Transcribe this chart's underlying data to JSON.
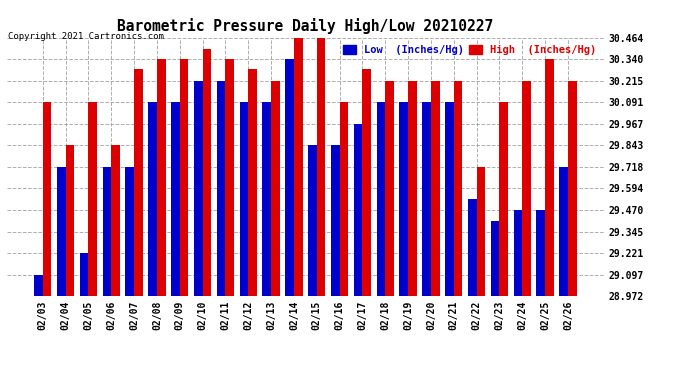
{
  "title": "Barometric Pressure Daily High/Low 20210227",
  "copyright": "Copyright 2021 Cartronics.com",
  "legend_low": "Low  (Inches/Hg)",
  "legend_high": "High  (Inches/Hg)",
  "dates": [
    "02/03",
    "02/04",
    "02/05",
    "02/06",
    "02/07",
    "02/08",
    "02/09",
    "02/10",
    "02/11",
    "02/12",
    "02/13",
    "02/14",
    "02/15",
    "02/16",
    "02/17",
    "02/18",
    "02/19",
    "02/20",
    "02/21",
    "02/22",
    "02/23",
    "02/24",
    "02/25",
    "02/26"
  ],
  "low_values": [
    29.097,
    29.718,
    29.221,
    29.718,
    29.718,
    30.091,
    30.091,
    30.215,
    30.215,
    30.091,
    30.091,
    30.34,
    29.843,
    29.843,
    29.967,
    30.091,
    30.091,
    30.091,
    30.091,
    29.53,
    29.406,
    29.47,
    29.47,
    29.718
  ],
  "high_values": [
    30.091,
    29.843,
    30.091,
    29.843,
    30.28,
    30.34,
    30.34,
    30.4,
    30.34,
    30.28,
    30.215,
    30.464,
    30.464,
    30.091,
    30.28,
    30.215,
    30.215,
    30.215,
    30.215,
    29.718,
    30.091,
    30.215,
    30.34,
    30.215
  ],
  "ylim_min": 28.972,
  "ylim_max": 30.464,
  "yticks": [
    28.972,
    29.097,
    29.221,
    29.345,
    29.47,
    29.594,
    29.718,
    29.843,
    29.967,
    30.091,
    30.215,
    30.34,
    30.464
  ],
  "low_color": "#0000cc",
  "high_color": "#dd0000",
  "bg_color": "#ffffff",
  "title_color": "#000000",
  "copyright_color": "#000000",
  "grid_color": "#999999",
  "bar_width": 0.38
}
